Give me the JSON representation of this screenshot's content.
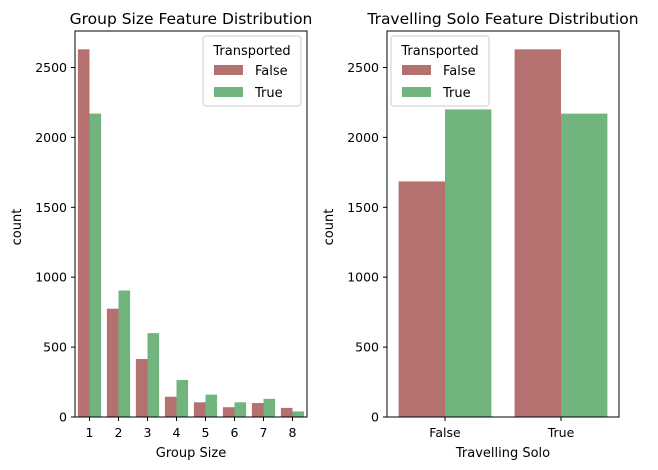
{
  "colors": {
    "false": "#b47170",
    "true": "#71b47d",
    "axes": "#000000",
    "legend_border": "#cccccc"
  },
  "chart_data": [
    {
      "type": "bar",
      "title": "Group Size Feature Distribution",
      "xlabel": "Group Size",
      "ylabel": "count",
      "categories": [
        "1",
        "2",
        "3",
        "4",
        "5",
        "6",
        "7",
        "8"
      ],
      "series": [
        {
          "name": "False",
          "values": [
            2630,
            775,
            415,
            145,
            105,
            70,
            100,
            65
          ]
        },
        {
          "name": "True",
          "values": [
            2170,
            905,
            600,
            265,
            160,
            105,
            130,
            40
          ]
        }
      ],
      "ylim": [
        0,
        2761
      ],
      "yticks": [
        0,
        500,
        1000,
        1500,
        2000,
        2500
      ],
      "grid": false,
      "legend": {
        "title": "Transported",
        "location": "upper right"
      }
    },
    {
      "type": "bar",
      "title": "Travelling Solo Feature Distribution",
      "xlabel": "Travelling Solo",
      "ylabel": "count",
      "categories": [
        "False",
        "True"
      ],
      "series": [
        {
          "name": "False",
          "values": [
            1685,
            2630
          ]
        },
        {
          "name": "True",
          "values": [
            2200,
            2170
          ]
        }
      ],
      "ylim": [
        0,
        2761
      ],
      "yticks": [
        0,
        500,
        1000,
        1500,
        2000,
        2500
      ],
      "grid": false,
      "legend": {
        "title": "Transported",
        "location": "upper left"
      }
    }
  ]
}
